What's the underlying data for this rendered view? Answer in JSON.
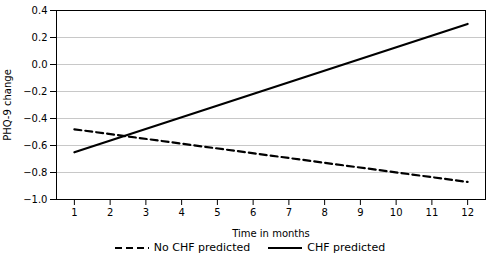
{
  "chart_data": {
    "type": "line",
    "xlabel": "Time in months",
    "ylabel": "PHQ-9 change",
    "series": [
      {
        "name": "No CHF predicted",
        "color": "#000000",
        "line_style": "dashed",
        "x": [
          1,
          12
        ],
        "values": [
          -0.48,
          -0.87
        ]
      },
      {
        "name": "CHF predicted",
        "color": "#000000",
        "line_style": "solid",
        "x": [
          1,
          12
        ],
        "values": [
          -0.65,
          0.3
        ]
      }
    ],
    "xlim": [
      0.5,
      12.5
    ],
    "ylim": [
      -1.0,
      0.4
    ],
    "xticks": [
      1,
      2,
      3,
      4,
      5,
      6,
      7,
      8,
      9,
      10,
      11,
      12
    ],
    "yticks": [
      {
        "value": -1.0,
        "label": "−1.0"
      },
      {
        "value": -0.8,
        "label": "−0.8"
      },
      {
        "value": -0.6,
        "label": "−0.6"
      },
      {
        "value": -0.4,
        "label": "−0.4"
      },
      {
        "value": -0.2,
        "label": "−0.2"
      },
      {
        "value": 0.0,
        "label": "0.0"
      },
      {
        "value": 0.2,
        "label": "0.2"
      },
      {
        "value": 0.4,
        "label": "0.4"
      }
    ],
    "grid": true,
    "legend": "bottom"
  }
}
